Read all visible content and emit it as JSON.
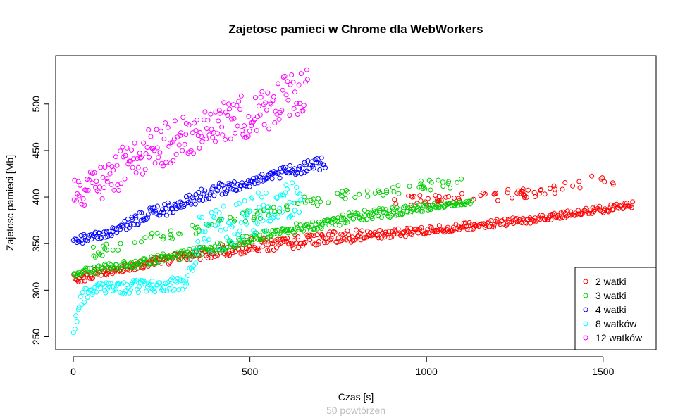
{
  "chart_data": {
    "type": "scatter",
    "title": "Zajetosc pamieci w Chrome dla WebWorkers",
    "subtitle": "50 powtórzen",
    "xlabel": "Czas [s]",
    "ylabel": "Zajetosc pamieci [Mb]",
    "xlim": [
      -50,
      1650
    ],
    "ylim": [
      236,
      552
    ],
    "xticks": [
      0,
      500,
      1000,
      1500
    ],
    "yticks": [
      250,
      300,
      350,
      400,
      450,
      500
    ],
    "grid": false,
    "legend_position": "bottom-right",
    "marker": "open-circle",
    "series": [
      {
        "name": "2 watki",
        "color": "#ff0000",
        "band_lower": [
          [
            0,
            305
          ],
          [
            100,
            317
          ],
          [
            300,
            330
          ],
          [
            500,
            340
          ],
          [
            800,
            352
          ],
          [
            1000,
            360
          ],
          [
            1300,
            372
          ],
          [
            1585,
            388
          ]
        ],
        "band_upper": [
          [
            0,
            318
          ],
          [
            100,
            325
          ],
          [
            300,
            340
          ],
          [
            500,
            355
          ],
          [
            800,
            365
          ],
          [
            1000,
            368
          ],
          [
            1300,
            380
          ],
          [
            1585,
            395
          ]
        ],
        "upper_cluster": [
          [
            900,
            395
          ],
          [
            1100,
            398
          ],
          [
            1300,
            405
          ],
          [
            1460,
            417
          ],
          [
            1550,
            418
          ]
        ]
      },
      {
        "name": "3 watki",
        "color": "#00cd00",
        "band_lower": [
          [
            0,
            314
          ],
          [
            200,
            325
          ],
          [
            400,
            340
          ],
          [
            600,
            360
          ],
          [
            800,
            372
          ],
          [
            1000,
            385
          ],
          [
            1130,
            392
          ]
        ],
        "band_upper": [
          [
            0,
            322
          ],
          [
            200,
            335
          ],
          [
            400,
            350
          ],
          [
            600,
            370
          ],
          [
            800,
            385
          ],
          [
            1000,
            393
          ],
          [
            1130,
            398
          ]
        ],
        "upper_cluster": [
          [
            50,
            340
          ],
          [
            200,
            355
          ],
          [
            400,
            370
          ],
          [
            600,
            390
          ],
          [
            800,
            405
          ],
          [
            1000,
            412
          ],
          [
            1100,
            415
          ]
        ]
      },
      {
        "name": "4 watki",
        "color": "#0000ff",
        "band_lower": [
          [
            0,
            348
          ],
          [
            100,
            357
          ],
          [
            200,
            372
          ],
          [
            300,
            385
          ],
          [
            400,
            400
          ],
          [
            500,
            410
          ],
          [
            600,
            422
          ],
          [
            715,
            430
          ]
        ],
        "band_upper": [
          [
            0,
            358
          ],
          [
            100,
            365
          ],
          [
            200,
            387
          ],
          [
            300,
            398
          ],
          [
            400,
            415
          ],
          [
            500,
            420
          ],
          [
            600,
            433
          ],
          [
            715,
            445
          ]
        ]
      },
      {
        "name": "8 watków",
        "color": "#00ffff",
        "band_lower": [
          [
            0,
            250
          ],
          [
            20,
            280
          ],
          [
            50,
            295
          ],
          [
            150,
            296
          ],
          [
            320,
            300
          ],
          [
            360,
            330
          ],
          [
            500,
            355
          ],
          [
            650,
            385
          ]
        ],
        "band_upper": [
          [
            0,
            265
          ],
          [
            20,
            300
          ],
          [
            50,
            307
          ],
          [
            150,
            310
          ],
          [
            320,
            315
          ],
          [
            360,
            385
          ],
          [
            500,
            400
          ],
          [
            650,
            430
          ]
        ]
      },
      {
        "name": "12 watków",
        "color": "#ff00ff",
        "band_lower": [
          [
            0,
            385
          ],
          [
            100,
            400
          ],
          [
            200,
            425
          ],
          [
            300,
            440
          ],
          [
            400,
            455
          ],
          [
            500,
            465
          ],
          [
            600,
            480
          ],
          [
            665,
            495
          ]
        ],
        "band_upper": [
          [
            0,
            420
          ],
          [
            100,
            440
          ],
          [
            200,
            475
          ],
          [
            300,
            490
          ],
          [
            400,
            505
          ],
          [
            500,
            515
          ],
          [
            600,
            530
          ],
          [
            665,
            540
          ]
        ]
      }
    ]
  }
}
